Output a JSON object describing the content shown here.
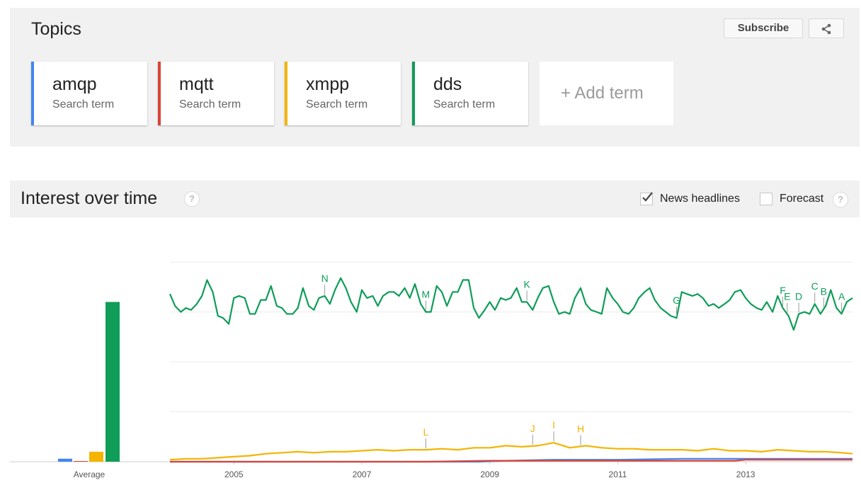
{
  "topics": {
    "title": "Topics",
    "subscribe_label": "Subscribe",
    "terms": [
      {
        "name": "amqp",
        "sub": "Search term",
        "color": "#4285f4"
      },
      {
        "name": "mqtt",
        "sub": "Search term",
        "color": "#db4437"
      },
      {
        "name": "xmpp",
        "sub": "Search term",
        "color": "#f4b400"
      },
      {
        "name": "dds",
        "sub": "Search term",
        "color": "#0f9d58"
      }
    ],
    "add_term_label": "+ Add term"
  },
  "interest": {
    "title": "Interest over time",
    "help": "?",
    "news_headlines_label": "News headlines",
    "news_headlines_checked": true,
    "forecast_label": "Forecast",
    "forecast_checked": false
  },
  "chart_data": {
    "type": "line",
    "x_ticks": [
      "2005",
      "2007",
      "2009",
      "2011",
      "2013"
    ],
    "x_range": [
      2004.0,
      2014.67
    ],
    "y_range": [
      0,
      100
    ],
    "grid": true,
    "average_label": "Average",
    "averages": [
      {
        "name": "amqp",
        "value": 1.5,
        "color": "#4285f4"
      },
      {
        "name": "mqtt",
        "value": 0.3,
        "color": "#db4437"
      },
      {
        "name": "xmpp",
        "value": 5,
        "color": "#f4b400"
      },
      {
        "name": "dds",
        "value": 80,
        "color": "#0f9d58"
      }
    ],
    "series": [
      {
        "name": "dds",
        "color": "#0f9d58",
        "x": [
          2004.0,
          2004.08,
          2004.17,
          2004.25,
          2004.33,
          2004.42,
          2004.5,
          2004.58,
          2004.67,
          2004.75,
          2004.83,
          2004.92,
          2005.0,
          2005.08,
          2005.17,
          2005.25,
          2005.33,
          2005.42,
          2005.5,
          2005.58,
          2005.67,
          2005.75,
          2005.83,
          2005.92,
          2006.0,
          2006.08,
          2006.17,
          2006.25,
          2006.33,
          2006.42,
          2006.5,
          2006.58,
          2006.67,
          2006.75,
          2006.83,
          2006.92,
          2007.0,
          2007.08,
          2007.17,
          2007.25,
          2007.33,
          2007.42,
          2007.5,
          2007.58,
          2007.67,
          2007.75,
          2007.83,
          2007.92,
          2008.0,
          2008.08,
          2008.17,
          2008.25,
          2008.33,
          2008.42,
          2008.5,
          2008.58,
          2008.67,
          2008.75,
          2008.83,
          2008.92,
          2009.0,
          2009.08,
          2009.17,
          2009.25,
          2009.33,
          2009.42,
          2009.5,
          2009.58,
          2009.67,
          2009.75,
          2009.83,
          2009.92,
          2010.0,
          2010.08,
          2010.17,
          2010.25,
          2010.33,
          2010.42,
          2010.5,
          2010.58,
          2010.67,
          2010.75,
          2010.83,
          2010.92,
          2011.0,
          2011.08,
          2011.17,
          2011.25,
          2011.33,
          2011.42,
          2011.5,
          2011.58,
          2011.67,
          2011.75,
          2011.83,
          2011.92,
          2012.0,
          2012.08,
          2012.17,
          2012.25,
          2012.33,
          2012.42,
          2012.5,
          2012.58,
          2012.67,
          2012.75,
          2012.83,
          2012.92,
          2013.0,
          2013.08,
          2013.17,
          2013.25,
          2013.33,
          2013.42,
          2013.5,
          2013.58,
          2013.67,
          2013.75,
          2013.83,
          2013.92,
          2014.0,
          2014.08,
          2014.17,
          2014.25,
          2014.33,
          2014.42,
          2014.5,
          2014.58,
          2014.67
        ],
        "values": [
          84,
          78,
          75,
          77,
          76,
          79,
          83,
          91,
          85,
          73,
          72,
          69,
          82,
          83,
          82,
          74,
          74,
          81,
          81,
          88,
          78,
          77,
          74,
          74,
          77,
          87,
          78,
          76,
          82,
          83,
          79,
          86,
          92,
          87,
          80,
          75,
          86,
          82,
          83,
          78,
          83,
          85,
          85,
          83,
          87,
          82,
          89,
          79,
          75,
          75,
          88,
          85,
          78,
          85,
          85,
          91,
          91,
          77,
          72,
          76,
          80,
          76,
          82,
          81,
          82,
          87,
          80,
          80,
          76,
          82,
          87,
          88,
          80,
          74,
          75,
          74,
          82,
          87,
          79,
          76,
          75,
          74,
          87,
          82,
          79,
          75,
          74,
          77,
          82,
          85,
          87,
          81,
          77,
          75,
          73,
          72,
          85,
          84,
          83,
          84,
          82,
          78,
          79,
          77,
          79,
          81,
          85,
          86,
          82,
          79,
          77,
          76,
          80,
          75,
          83,
          77,
          73,
          66,
          74,
          75,
          74,
          79,
          74,
          78,
          86,
          77,
          74,
          80,
          82
        ],
        "annotations": [
          {
            "label": "N",
            "x": 2006.42
          },
          {
            "label": "M",
            "x": 2008.0
          },
          {
            "label": "K",
            "x": 2009.58
          },
          {
            "label": "G",
            "x": 2011.92
          },
          {
            "label": "F",
            "x": 2013.58
          },
          {
            "label": "E",
            "x": 2013.65
          },
          {
            "label": "D",
            "x": 2013.83
          },
          {
            "label": "C",
            "x": 2014.08
          },
          {
            "label": "B",
            "x": 2014.22
          },
          {
            "label": "A",
            "x": 2014.5
          }
        ]
      },
      {
        "name": "xmpp",
        "color": "#f4b400",
        "x": [
          2004.0,
          2004.25,
          2004.5,
          2004.75,
          2005.0,
          2005.25,
          2005.5,
          2005.75,
          2006.0,
          2006.25,
          2006.5,
          2006.75,
          2007.0,
          2007.25,
          2007.5,
          2007.75,
          2008.0,
          2008.25,
          2008.5,
          2008.75,
          2009.0,
          2009.25,
          2009.5,
          2009.75,
          2010.0,
          2010.25,
          2010.5,
          2010.75,
          2011.0,
          2011.25,
          2011.5,
          2011.75,
          2012.0,
          2012.25,
          2012.5,
          2012.75,
          2013.0,
          2013.25,
          2013.5,
          2013.75,
          2014.0,
          2014.25,
          2014.5,
          2014.67
        ],
        "values": [
          1,
          1.5,
          1.5,
          2,
          2.5,
          3,
          4,
          4.5,
          5,
          4.5,
          5,
          5,
          5.5,
          6,
          5.5,
          6,
          6,
          6.5,
          6,
          7,
          7,
          8,
          7.5,
          8,
          9.5,
          7,
          8,
          7,
          6.5,
          6.5,
          6,
          6,
          6,
          5.5,
          6.5,
          5.5,
          5.5,
          5,
          6,
          5.5,
          5,
          5,
          4.5,
          4
        ],
        "annotations": [
          {
            "label": "L",
            "x": 2008.0
          },
          {
            "label": "J",
            "x": 2009.67
          },
          {
            "label": "I",
            "x": 2010.0
          },
          {
            "label": "H",
            "x": 2010.42
          }
        ]
      },
      {
        "name": "amqp",
        "color": "#4285f4",
        "x": [
          2004.0,
          2008.83,
          2009.25,
          2010.0,
          2011.0,
          2012.0,
          2013.0,
          2014.0,
          2014.67
        ],
        "values": [
          0,
          0,
          0.5,
          1,
          1,
          1.5,
          1.5,
          1.5,
          1.5
        ]
      },
      {
        "name": "mqtt",
        "color": "#db4437",
        "x": [
          2004.0,
          2008.0,
          2009.0,
          2010.0,
          2011.0,
          2012.0,
          2012.83,
          2013.0,
          2014.0,
          2014.67
        ],
        "values": [
          0,
          0,
          0.5,
          0.5,
          0.5,
          0.5,
          0.5,
          1,
          1,
          1
        ]
      }
    ]
  }
}
